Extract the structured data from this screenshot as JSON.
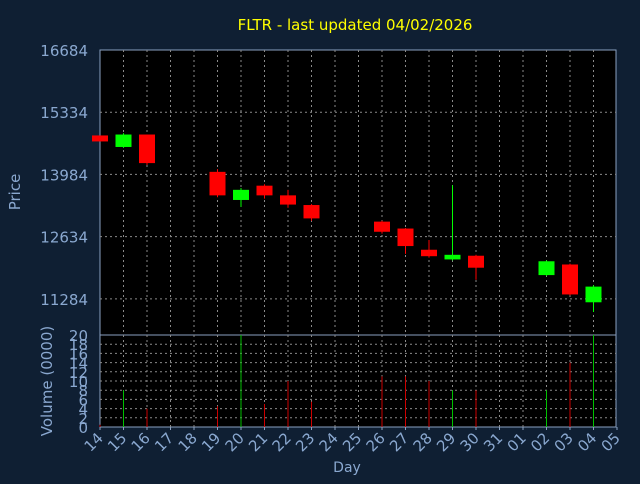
{
  "colors": {
    "background": "#0f1f33",
    "plot_background": "#000000",
    "grid": "#8a8a8a",
    "axis": "#8aa0c0",
    "title": "#ffff00",
    "label": "#8aa8d0",
    "up": "#00ff00",
    "down": "#ff0000",
    "volume_up": "#00c000",
    "volume_down": "#cc0000"
  },
  "chart_data": [
    {
      "type": "candlestick",
      "title": "FLTR - last updated 04/02/2026",
      "xlabel": "Day",
      "ylabel": "Price",
      "x_ticks": [
        "14",
        "15",
        "16",
        "17",
        "18",
        "19",
        "20",
        "21",
        "22",
        "23",
        "24",
        "25",
        "26",
        "27",
        "28",
        "29",
        "30",
        "31",
        "01",
        "02",
        "03",
        "04",
        "05"
      ],
      "y_ticks": [
        "16684",
        "15334",
        "13984",
        "12634",
        "11284"
      ],
      "ylim": [
        10500,
        16684
      ],
      "grid": true,
      "candles": [
        {
          "x": "14",
          "open": 14830,
          "close": 14700,
          "high": 14830,
          "low": 14700
        },
        {
          "x": "15",
          "open": 14580,
          "close": 14850,
          "high": 14880,
          "low": 14560
        },
        {
          "x": "16",
          "open": 14850,
          "close": 14230,
          "high": 14850,
          "low": 14190
        },
        {
          "x": "19",
          "open": 14040,
          "close": 13530,
          "high": 14100,
          "low": 13490
        },
        {
          "x": "20",
          "open": 13430,
          "close": 13650,
          "high": 13690,
          "low": 13280
        },
        {
          "x": "21",
          "open": 13740,
          "close": 13530,
          "high": 13770,
          "low": 13460
        },
        {
          "x": "22",
          "open": 13530,
          "close": 13330,
          "high": 13650,
          "low": 13260
        },
        {
          "x": "23",
          "open": 13320,
          "close": 13030,
          "high": 13340,
          "low": 12980
        },
        {
          "x": "26",
          "open": 12960,
          "close": 12740,
          "high": 12980,
          "low": 12700
        },
        {
          "x": "27",
          "open": 12810,
          "close": 12430,
          "high": 12820,
          "low": 12260
        },
        {
          "x": "28",
          "open": 12350,
          "close": 12210,
          "high": 12560,
          "low": 12180
        },
        {
          "x": "29",
          "open": 12140,
          "close": 12240,
          "high": 13750,
          "low": 12120
        },
        {
          "x": "30",
          "open": 12220,
          "close": 11960,
          "high": 12240,
          "low": 11700
        },
        {
          "x": "02",
          "open": 11800,
          "close": 12100,
          "high": 12120,
          "low": 11780
        },
        {
          "x": "03",
          "open": 12030,
          "close": 11380,
          "high": 12050,
          "low": 11360
        },
        {
          "x": "04",
          "open": 11210,
          "close": 11550,
          "high": 11580,
          "low": 11000
        }
      ]
    },
    {
      "type": "bar",
      "ylabel": "Volume (0000)",
      "y_ticks": [
        "20",
        "18",
        "16",
        "14",
        "12",
        "10",
        "8",
        "6",
        "4",
        "2",
        "0"
      ],
      "ylim": [
        0,
        20
      ],
      "grid": true,
      "bars": [
        {
          "x": "14",
          "value": 0.5,
          "direction": "down"
        },
        {
          "x": "15",
          "value": 8,
          "direction": "up"
        },
        {
          "x": "16",
          "value": 4,
          "direction": "down"
        },
        {
          "x": "19",
          "value": 4.5,
          "direction": "down"
        },
        {
          "x": "20",
          "value": 20,
          "direction": "up"
        },
        {
          "x": "21",
          "value": 5,
          "direction": "down"
        },
        {
          "x": "22",
          "value": 10,
          "direction": "down"
        },
        {
          "x": "23",
          "value": 5.5,
          "direction": "down"
        },
        {
          "x": "26",
          "value": 11,
          "direction": "down"
        },
        {
          "x": "27",
          "value": 11,
          "direction": "down"
        },
        {
          "x": "28",
          "value": 10,
          "direction": "down"
        },
        {
          "x": "29",
          "value": 8,
          "direction": "up"
        },
        {
          "x": "30",
          "value": 8,
          "direction": "down"
        },
        {
          "x": "02",
          "value": 8,
          "direction": "up"
        },
        {
          "x": "03",
          "value": 14,
          "direction": "down"
        },
        {
          "x": "04",
          "value": 20,
          "direction": "up"
        }
      ]
    }
  ]
}
